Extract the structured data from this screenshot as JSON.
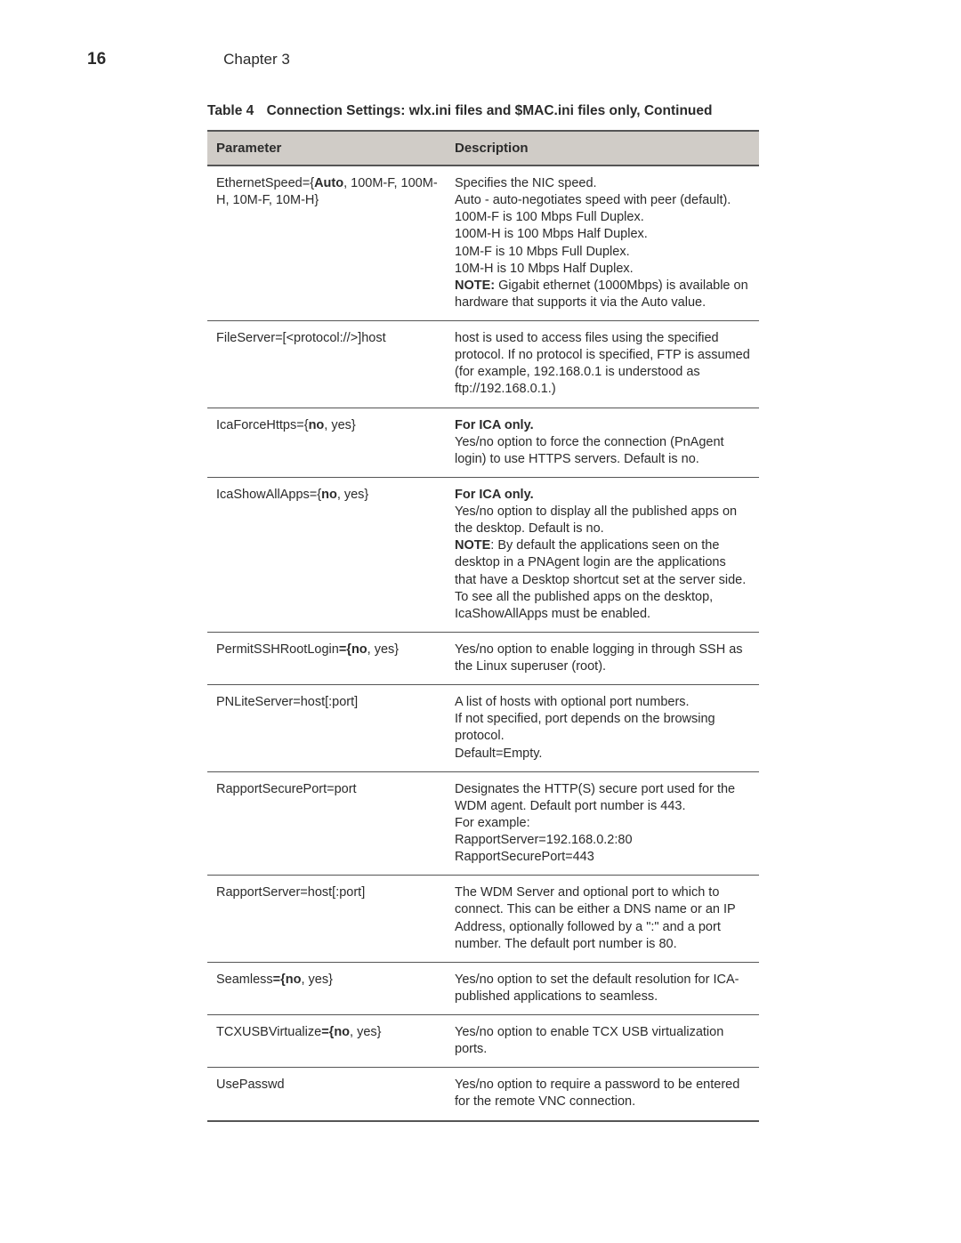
{
  "page_number": "16",
  "chapter": "Chapter 3",
  "table_label": "Table 4",
  "table_title": "Connection Settings: wlx.ini files and $MAC.ini files only, Continued",
  "columns": {
    "param": "Parameter",
    "desc": "Description"
  },
  "rows": [
    {
      "param": [
        {
          "t": "EthernetSpeed={"
        },
        {
          "t": "Auto",
          "b": true
        },
        {
          "t": ", 100M-F, 100M-H, 10M-F, 10M-H}"
        }
      ],
      "desc": [
        {
          "t": "Specifies the NIC speed."
        },
        {
          "br": true
        },
        {
          "t": "Auto - auto-negotiates speed with peer (default)."
        },
        {
          "br": true
        },
        {
          "t": "100M-F is 100 Mbps Full Duplex."
        },
        {
          "br": true
        },
        {
          "t": "100M-H is 100 Mbps Half Duplex."
        },
        {
          "br": true
        },
        {
          "t": "10M-F is 10 Mbps Full Duplex."
        },
        {
          "br": true
        },
        {
          "t": "10M-H is 10 Mbps Half Duplex."
        },
        {
          "br": true
        },
        {
          "t": "NOTE:",
          "b": true
        },
        {
          "t": " Gigabit ethernet (1000Mbps) is available on hardware that supports it via the Auto value."
        }
      ]
    },
    {
      "param": [
        {
          "t": "FileServer=[<protocol://>]host"
        }
      ],
      "desc": [
        {
          "t": "host is used to access files using the specified protocol. If no protocol is specified, FTP is assumed (for example, 192.168.0.1 is understood as ftp://192.168.0.1.)"
        }
      ]
    },
    {
      "param": [
        {
          "t": "IcaForceHttps={"
        },
        {
          "t": "no",
          "b": true
        },
        {
          "t": ", yes}"
        }
      ],
      "desc": [
        {
          "t": "For ICA only.",
          "b": true
        },
        {
          "br": true
        },
        {
          "t": "Yes/no option to force the connection (PnAgent login) to use HTTPS servers. Default is no."
        }
      ]
    },
    {
      "param": [
        {
          "t": "IcaShowAllApps={"
        },
        {
          "t": "no",
          "b": true
        },
        {
          "t": ", yes}"
        }
      ],
      "desc": [
        {
          "t": "For ICA only.",
          "b": true
        },
        {
          "br": true
        },
        {
          "t": "Yes/no option to display all the published apps on the desktop. Default is no."
        },
        {
          "br": true
        },
        {
          "t": "NOTE",
          "b": true
        },
        {
          "t": ": By default the applications seen on the desktop in a PNAgent login are the applications that have a Desktop shortcut set at the server side. To see all the published apps on the desktop, IcaShowAllApps must be enabled."
        }
      ]
    },
    {
      "param": [
        {
          "t": "PermitSSHRootLogin"
        },
        {
          "t": "={no",
          "b": true
        },
        {
          "t": ", yes}"
        }
      ],
      "desc": [
        {
          "t": "Yes/no option to enable logging in through SSH as the Linux superuser (root)."
        }
      ]
    },
    {
      "param": [
        {
          "t": "PNLiteServer=host[:port]"
        }
      ],
      "desc": [
        {
          "t": "A list of hosts with optional port numbers."
        },
        {
          "br": true
        },
        {
          "t": "If not specified, port depends on the browsing protocol."
        },
        {
          "br": true
        },
        {
          "t": "Default=Empty."
        }
      ]
    },
    {
      "param": [
        {
          "t": "RapportSecurePort=port"
        }
      ],
      "desc": [
        {
          "t": "Designates the HTTP(S) secure port used for the WDM agent. Default port number is 443."
        },
        {
          "br": true
        },
        {
          "t": "For example:"
        },
        {
          "br": true
        },
        {
          "t": "RapportServer=192.168.0.2:80"
        },
        {
          "br": true
        },
        {
          "t": "RapportSecurePort=443"
        }
      ]
    },
    {
      "param": [
        {
          "t": "RapportServer=host[:port]"
        }
      ],
      "desc": [
        {
          "t": "The WDM Server and optional port to which to connect. This can be either a DNS name or an IP Address, optionally followed by a \":\" and a port number. The default port number is 80."
        }
      ]
    },
    {
      "param": [
        {
          "t": "Seamless"
        },
        {
          "t": "={no",
          "b": true
        },
        {
          "t": ", yes}"
        }
      ],
      "desc": [
        {
          "t": "Yes/no option to set the default resolution for ICA-published applications to seamless."
        }
      ]
    },
    {
      "param": [
        {
          "t": "TCXUSBVirtualize"
        },
        {
          "t": "={no",
          "b": true
        },
        {
          "t": ", yes}"
        }
      ],
      "desc": [
        {
          "t": "Yes/no option to enable TCX USB virtualization ports."
        }
      ]
    },
    {
      "param": [
        {
          "t": "UsePasswd"
        }
      ],
      "desc": [
        {
          "t": "Yes/no option to require a password to be entered for the remote VNC connection."
        }
      ]
    }
  ]
}
